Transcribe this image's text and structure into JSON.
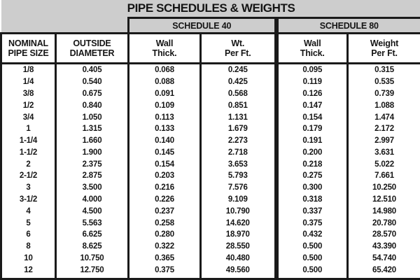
{
  "title": "PIPE SCHEDULES & WEIGHTS",
  "schedule_groups": [
    {
      "label": "SCHEDULE 40"
    },
    {
      "label": "SCHEDULE 80"
    }
  ],
  "column_headers": [
    {
      "line1": "NOMINAL",
      "line2": "PIPE SIZE"
    },
    {
      "line1": "OUTSIDE",
      "line2": "DIAMETER"
    },
    {
      "line1": "Wall",
      "line2": "Thick."
    },
    {
      "line1": "Wt.",
      "line2": "Per Ft."
    },
    {
      "line1": "Wall",
      "line2": "Thick."
    },
    {
      "line1": "Weight",
      "line2": "Per Ft."
    }
  ],
  "rows": [
    [
      "1/8",
      "0.405",
      "0.068",
      "0.245",
      "0.095",
      "0.315"
    ],
    [
      "1/4",
      "0.540",
      "0.088",
      "0.425",
      "0.119",
      "0.535"
    ],
    [
      "3/8",
      "0.675",
      "0.091",
      "0.568",
      "0.126",
      "0.739"
    ],
    [
      "1/2",
      "0.840",
      "0.109",
      "0.851",
      "0.147",
      "1.088"
    ],
    [
      "3/4",
      "1.050",
      "0.113",
      "1.131",
      "0.154",
      "1.474"
    ],
    [
      "1",
      "1.315",
      "0.133",
      "1.679",
      "0.179",
      "2.172"
    ],
    [
      "1-1/4",
      "1.660",
      "0.140",
      "2.273",
      "0.191",
      "2.997"
    ],
    [
      "1-1/2",
      "1.900",
      "0.145",
      "2.718",
      "0.200",
      "3.631"
    ],
    [
      "2",
      "2.375",
      "0.154",
      "3.653",
      "0.218",
      "5.022"
    ],
    [
      "2-1/2",
      "2.875",
      "0.203",
      "5.793",
      "0.275",
      "7.661"
    ],
    [
      "3",
      "3.500",
      "0.216",
      "7.576",
      "0.300",
      "10.250"
    ],
    [
      "3-1/2",
      "4.000",
      "0.226",
      "9.109",
      "0.318",
      "12.510"
    ],
    [
      "4",
      "4.500",
      "0.237",
      "10.790",
      "0.337",
      "14.980"
    ],
    [
      "5",
      "5.563",
      "0.258",
      "14.620",
      "0.375",
      "20.780"
    ],
    [
      "6",
      "6.625",
      "0.280",
      "18.970",
      "0.432",
      "28.570"
    ],
    [
      "8",
      "8.625",
      "0.322",
      "28.550",
      "0.500",
      "43.390"
    ],
    [
      "10",
      "10.750",
      "0.365",
      "40.480",
      "0.500",
      "54.740"
    ],
    [
      "12",
      "12.750",
      "0.375",
      "49.560",
      "0.500",
      "65.420"
    ]
  ],
  "colors": {
    "header_bg": "#cdcdcd",
    "border": "#1a1a1a",
    "text": "#151515",
    "cell_bg": "#ffffff"
  }
}
